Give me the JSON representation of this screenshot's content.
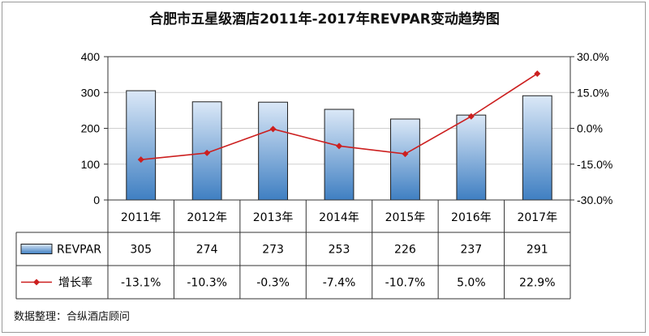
{
  "chart_data": {
    "type": "bar",
    "title": "合肥市五星级酒店2011年-2017年REVPAR变动趋势图",
    "categories": [
      "2011年",
      "2012年",
      "2013年",
      "2014年",
      "2015年",
      "2016年",
      "2017年"
    ],
    "series": [
      {
        "name": "REVPAR",
        "type": "bar",
        "axis": "left",
        "values": [
          305,
          274,
          273,
          253,
          226,
          237,
          291
        ],
        "labels": [
          "305",
          "274",
          "273",
          "253",
          "226",
          "237",
          "291"
        ]
      },
      {
        "name": "增长率",
        "type": "line",
        "axis": "right",
        "values": [
          -13.1,
          -10.3,
          -0.3,
          -7.4,
          -10.7,
          5.0,
          22.9
        ],
        "labels": [
          "-13.1%",
          "-10.3%",
          "-0.3%",
          "-7.4%",
          "-10.7%",
          "5.0%",
          "22.9%"
        ]
      }
    ],
    "ylim_left": [
      0,
      400
    ],
    "yticks_left": [
      "0",
      "100",
      "200",
      "300",
      "400"
    ],
    "ylim_right": [
      -30,
      30
    ],
    "yticks_right": [
      "-30.0%",
      "-15.0%",
      "0.0%",
      "15.0%",
      "30.0%"
    ],
    "grid": true,
    "data_table": true,
    "colors": {
      "bar_top": "#dbe8f7",
      "bar_bottom": "#3f7fc2",
      "bar_edge": "#1f1f1f",
      "line": "#cc1f1f"
    }
  },
  "footer": {
    "source": "数据整理：合纵酒店顾问"
  }
}
